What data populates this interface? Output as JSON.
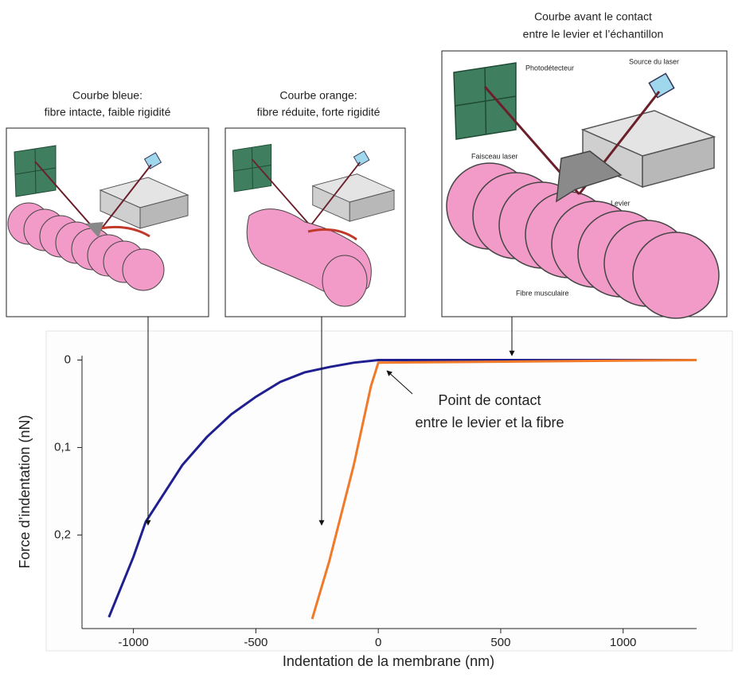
{
  "chart_data": {
    "type": "line",
    "xlabel": "Indentation de la membrane (nm)",
    "ylabel": "Force d’indentation (nN)",
    "annotation": [
      "Point de contact",
      "entre le levier et la fibre"
    ],
    "xlim": [
      -1210,
      1300
    ],
    "xticks": [
      -1000,
      -500,
      0,
      500,
      1000
    ],
    "ylim": [
      -0.005,
      0.307
    ],
    "y_inverted": true,
    "yticks": [
      0,
      {
        "value": 0.1,
        "label": "0,1"
      },
      {
        "value": 0.2,
        "label": "0,2"
      }
    ],
    "series": [
      {
        "color": "#1f1f8f",
        "x": [
          -1100,
          -1000,
          -950,
          -800,
          -700,
          -600,
          -500,
          -400,
          -300,
          -200,
          -100,
          0,
          1300
        ],
        "values": [
          0.294,
          0.225,
          0.185,
          0.12,
          0.088,
          0.062,
          0.042,
          0.025,
          0.014,
          0.008,
          0.003,
          0,
          0
        ]
      },
      {
        "color": "#f07a2a",
        "x": [
          -270,
          -200,
          -100,
          -30,
          0,
          1300
        ],
        "values": [
          0.296,
          0.23,
          0.12,
          0.03,
          0.003,
          0
        ]
      }
    ]
  },
  "panels": [
    {
      "caption": [
        "Courbe bleue:",
        "fibre intacte, faible rigidité"
      ]
    },
    {
      "caption": [
        "Courbe orange:",
        "fibre réduite, forte rigidité"
      ]
    },
    {
      "caption": [
        "Courbe avant le contact",
        "entre le levier et l’échantillon"
      ],
      "labels": [
        "Photodétecteur",
        "Source du laser",
        "Faisceau laser",
        "Levier",
        "Fibre musculaire"
      ]
    }
  ]
}
